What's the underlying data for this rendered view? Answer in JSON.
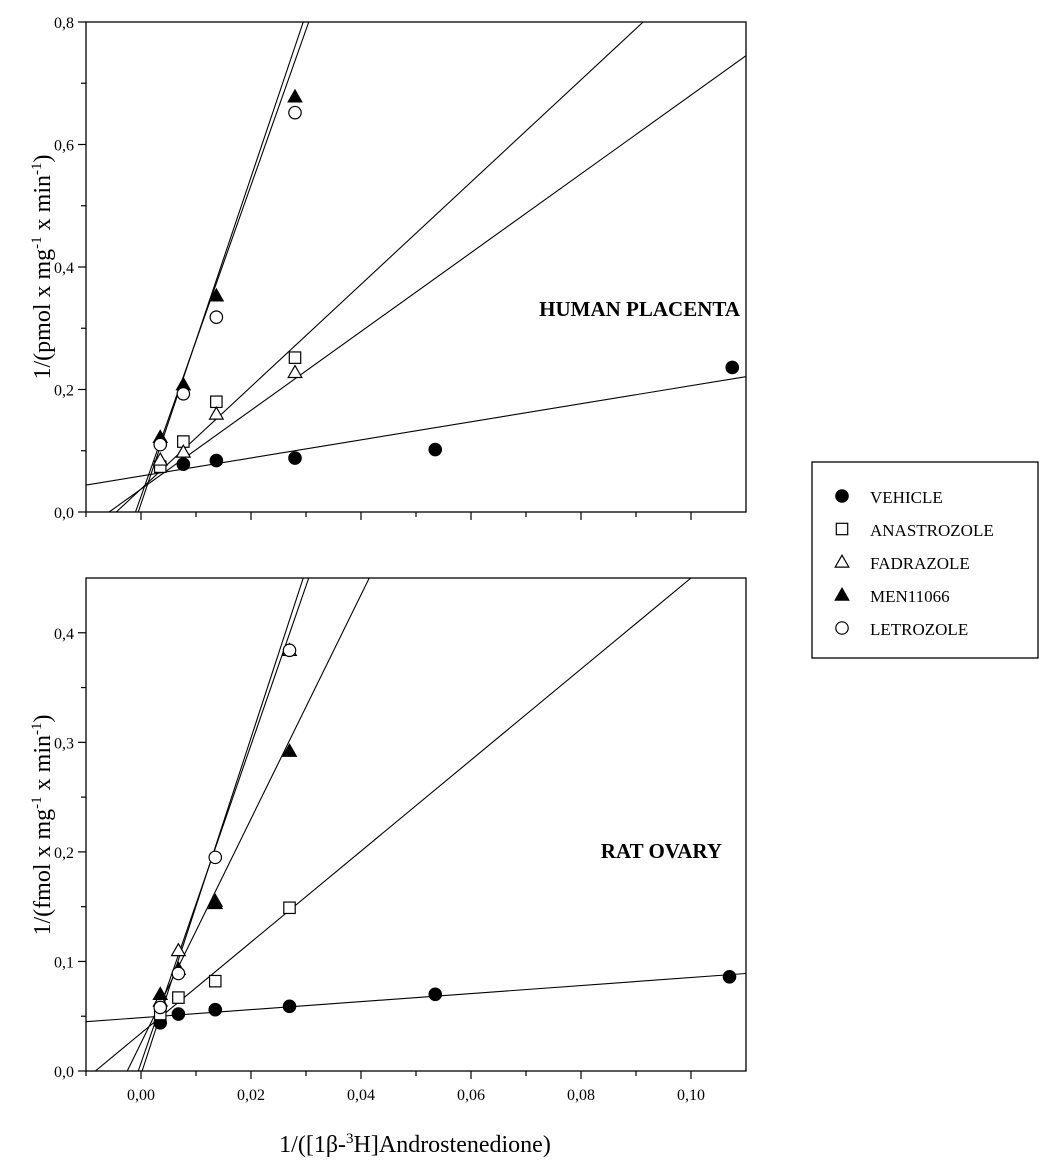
{
  "chart_data": [
    {
      "type": "scatter",
      "panel_label": "HUMAN PLACENTA",
      "ylabel_main": "1/(pmol x mg",
      "ylabel_sup1": "-1",
      "ylabel_mid": " x min",
      "ylabel_sup2": "-1",
      "ylabel_end": ")",
      "xlim": [
        -0.01,
        0.11
      ],
      "ylim": [
        0.0,
        0.8
      ],
      "x_ticks": [
        0.0,
        0.02,
        0.04,
        0.06,
        0.08,
        0.1
      ],
      "y_ticks": [
        0.0,
        0.2,
        0.4,
        0.6,
        0.8
      ],
      "y_tick_labels": [
        "0,0",
        "0,2",
        "0,4",
        "0,6",
        "0,8"
      ],
      "series": [
        {
          "name": "VEHICLE",
          "marker": "filled-circle",
          "points": [
            [
              0.0077,
              0.078
            ],
            [
              0.0137,
              0.084
            ],
            [
              0.028,
              0.088
            ],
            [
              0.0535,
              0.102
            ],
            [
              0.1075,
              0.236
            ]
          ],
          "line": [
            [
              -0.01,
              0.044
            ],
            [
              0.11,
              0.221
            ]
          ]
        },
        {
          "name": "ANASTROZOLE",
          "marker": "open-square",
          "points": [
            [
              0.0035,
              0.074
            ],
            [
              0.0077,
              0.115
            ],
            [
              0.0137,
              0.18
            ],
            [
              0.028,
              0.252
            ]
          ],
          "line": [
            [
              -0.0045,
              0.0
            ],
            [
              0.0913,
              0.8
            ]
          ]
        },
        {
          "name": "FADRAZOLE",
          "marker": "open-triangle",
          "points": [
            [
              0.0035,
              0.085
            ],
            [
              0.0077,
              0.098
            ],
            [
              0.0137,
              0.16
            ],
            [
              0.028,
              0.228
            ]
          ],
          "line": [
            [
              -0.0058,
              0.0
            ],
            [
              0.11,
              0.745
            ]
          ]
        },
        {
          "name": "MEN11066",
          "marker": "filled-triangle",
          "points": [
            [
              0.0035,
              0.122
            ],
            [
              0.0077,
              0.208
            ],
            [
              0.0137,
              0.353
            ],
            [
              0.028,
              0.678
            ]
          ],
          "line": [
            [
              -0.0005,
              0.0
            ],
            [
              0.0295,
              0.8
            ]
          ]
        },
        {
          "name": "LETROZOLE",
          "marker": "open-circle",
          "points": [
            [
              0.0035,
              0.11
            ],
            [
              0.0077,
              0.193
            ],
            [
              0.0137,
              0.318
            ],
            [
              0.028,
              0.652
            ]
          ],
          "line": [
            [
              -0.001,
              0.0
            ],
            [
              0.0305,
              0.8
            ]
          ]
        }
      ]
    },
    {
      "type": "scatter",
      "panel_label": "RAT OVARY",
      "ylabel_main": "1/(fmol x mg",
      "ylabel_sup1": "-1",
      "ylabel_mid": " x min",
      "ylabel_sup2": "-1",
      "ylabel_end": ")",
      "xlim": [
        -0.01,
        0.11
      ],
      "ylim": [
        0.0,
        0.45
      ],
      "x_ticks": [
        0.0,
        0.02,
        0.04,
        0.06,
        0.08,
        0.1
      ],
      "x_tick_labels": [
        "0,00",
        "0,02",
        "0,04",
        "0,06",
        "0,08",
        "0,10"
      ],
      "y_ticks": [
        0.0,
        0.1,
        0.2,
        0.3,
        0.4
      ],
      "y_tick_labels": [
        "0,0",
        "0,1",
        "0,2",
        "0,3",
        "0,4"
      ],
      "series": [
        {
          "name": "VEHICLE",
          "marker": "filled-circle",
          "points": [
            [
              0.0035,
              0.044
            ],
            [
              0.0068,
              0.052
            ],
            [
              0.0135,
              0.056
            ],
            [
              0.027,
              0.059
            ],
            [
              0.0535,
              0.07
            ],
            [
              0.107,
              0.086
            ]
          ],
          "line": [
            [
              -0.01,
              0.045
            ],
            [
              0.11,
              0.089
            ]
          ]
        },
        {
          "name": "ANASTROZOLE",
          "marker": "open-square",
          "points": [
            [
              0.0035,
              0.052
            ],
            [
              0.0068,
              0.067
            ],
            [
              0.0135,
              0.082
            ],
            [
              0.027,
              0.149
            ]
          ],
          "line": [
            [
              -0.0083,
              0.0
            ],
            [
              0.1,
              0.45
            ]
          ]
        },
        {
          "name": "FADRAZOLE",
          "marker": "open-triangle",
          "points": [
            [
              0.0035,
              0.064
            ],
            [
              0.0068,
              0.11
            ],
            [
              0.0135,
              0.155
            ],
            [
              0.027,
              0.384
            ]
          ],
          "line": [
            [
              -0.0005,
              0.0
            ],
            [
              0.0305,
              0.45
            ]
          ]
        },
        {
          "name": "MEN11066",
          "marker": "filled-triangle",
          "points": [
            [
              0.0035,
              0.07
            ],
            [
              0.0068,
              0.093
            ],
            [
              0.0135,
              0.153
            ],
            [
              0.027,
              0.292
            ]
          ],
          "line": [
            [
              -0.0025,
              0.0
            ],
            [
              0.0415,
              0.45
            ]
          ]
        },
        {
          "name": "LETROZOLE",
          "marker": "open-circle",
          "points": [
            [
              0.0035,
              0.058
            ],
            [
              0.0068,
              0.089
            ],
            [
              0.0135,
              0.195
            ],
            [
              0.027,
              0.384
            ]
          ],
          "line": [
            [
              0.0002,
              0.0
            ],
            [
              0.0295,
              0.45
            ]
          ]
        }
      ]
    }
  ],
  "shared": {
    "xlabel_pre": "1/([1β-",
    "xlabel_sup": "3",
    "xlabel_post": "H]Androstenedione)",
    "legend": [
      {
        "name": "VEHICLE",
        "marker": "filled-circle"
      },
      {
        "name": "ANASTROZOLE",
        "marker": "open-square"
      },
      {
        "name": "FADRAZOLE",
        "marker": "open-triangle"
      },
      {
        "name": "MEN11066",
        "marker": "filled-triangle"
      },
      {
        "name": "LETROZOLE",
        "marker": "open-circle"
      }
    ]
  }
}
